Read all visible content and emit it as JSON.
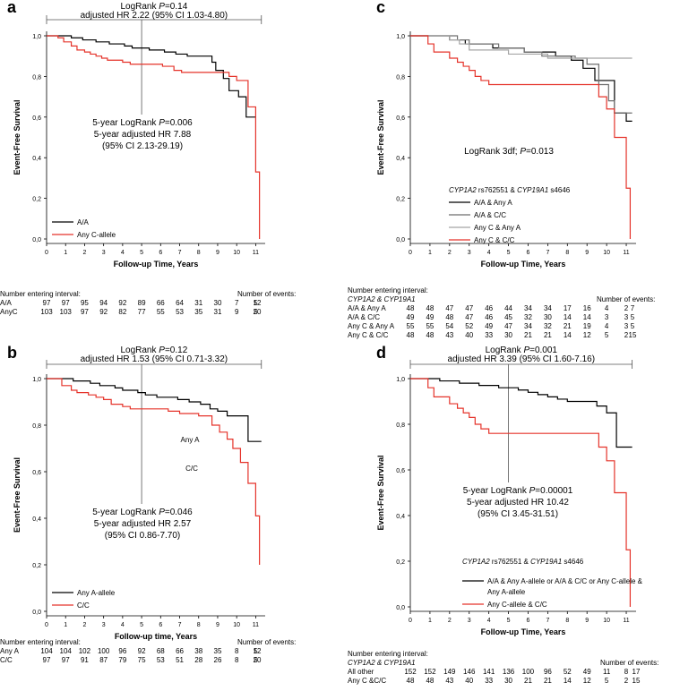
{
  "chart_data": [
    {
      "panel": "a",
      "type": "line",
      "ylabel": "Event-Free Survival",
      "xlabel": "Follow-up Time, Years",
      "xlim": [
        0,
        11.5
      ],
      "ylim": [
        0,
        1.0
      ],
      "xticks": [
        "0",
        "1",
        "2",
        "3",
        "4",
        "5",
        "6",
        "7",
        "8",
        "9",
        "10",
        "11"
      ],
      "yticks": [
        "0,0",
        "0,2",
        "0,4",
        "0,6",
        "0,8",
        "1,0"
      ],
      "overall_annotation": {
        "line1": "LogRank P=0.14",
        "line2": "adjusted HR 2.22 (95% CI 1.03-4.80)"
      },
      "five_year_annotation": [
        "5-year LogRank P=0.006",
        "5-year adjusted HR 7.88",
        "(95% CI 2.13-29.19)"
      ],
      "series": [
        {
          "name": "A/A",
          "color": "#000000",
          "x": [
            0,
            1.1,
            1.3,
            1.6,
            1.9,
            2.3,
            2.6,
            2.9,
            3.3,
            3.7,
            4.1,
            4.5,
            5.1,
            5.4,
            6.2,
            6.8,
            7.4,
            8.1,
            8.7,
            8.9,
            9.3,
            9.6,
            10.1,
            10.5,
            11.0
          ],
          "y": [
            1.0,
            1.0,
            0.99,
            0.99,
            0.98,
            0.98,
            0.97,
            0.97,
            0.96,
            0.96,
            0.95,
            0.94,
            0.94,
            0.93,
            0.92,
            0.91,
            0.9,
            0.9,
            0.87,
            0.83,
            0.79,
            0.73,
            0.7,
            0.6,
            0.6
          ]
        },
        {
          "name": "Any C-allele",
          "color": "#e5332a",
          "x": [
            0,
            0.6,
            0.9,
            1.3,
            1.6,
            2.0,
            2.3,
            2.6,
            2.9,
            3.2,
            3.6,
            4.0,
            4.4,
            4.8,
            5.2,
            6.1,
            6.7,
            7.1,
            7.4,
            8.3,
            8.8,
            9.2,
            9.6,
            10.0,
            10.6,
            11.0,
            11.2
          ],
          "y": [
            1.0,
            0.99,
            0.97,
            0.95,
            0.93,
            0.92,
            0.91,
            0.9,
            0.89,
            0.88,
            0.88,
            0.87,
            0.86,
            0.86,
            0.86,
            0.85,
            0.83,
            0.82,
            0.82,
            0.82,
            0.82,
            0.82,
            0.8,
            0.78,
            0.65,
            0.33,
            0.0
          ]
        }
      ],
      "risk_table": {
        "header": "Number entering interval:",
        "events_header": "Number of events:",
        "rows": [
          {
            "label": "A/A",
            "values": [
              "97",
              "97",
              "95",
              "94",
              "92",
              "89",
              "66",
              "64",
              "31",
              "30",
              "7",
              "5"
            ],
            "events": "12"
          },
          {
            "label": "AnyC",
            "values": [
              "103",
              "103",
              "97",
              "92",
              "82",
              "77",
              "55",
              "53",
              "35",
              "31",
              "9",
              "5"
            ],
            "events": "20"
          }
        ]
      }
    },
    {
      "panel": "b",
      "type": "line",
      "ylabel": "Event-Free Survival",
      "xlabel": "Follow-up time, Years",
      "xlim": [
        0,
        11.5
      ],
      "ylim": [
        0,
        1.0
      ],
      "xticks": [
        "0",
        "1",
        "2",
        "3",
        "4",
        "5",
        "6",
        "7",
        "8",
        "9",
        "10",
        "11"
      ],
      "yticks": [
        "0,0",
        "0,2",
        "0,4",
        "0,6",
        "0,8",
        "1,0"
      ],
      "overall_annotation": {
        "line1": "LogRank P=0.12",
        "line2": "adjusted HR 1.53 (95% CI 0.71-3.32)"
      },
      "five_year_annotation": [
        "5-year LogRank P=0.046",
        "5-year adjusted HR 2.57",
        "(95% CI 0.86-7.70)"
      ],
      "curve_labels": [
        "Any A",
        "C/C"
      ],
      "series": [
        {
          "name": "Any A-allele",
          "color": "#000000",
          "x": [
            0,
            1.0,
            1.4,
            1.8,
            2.3,
            2.8,
            3.2,
            3.6,
            4.0,
            4.4,
            4.8,
            5.2,
            5.8,
            6.3,
            6.9,
            7.5,
            8.1,
            8.6,
            9.0,
            9.5,
            10.0,
            10.6,
            11.0,
            11.3
          ],
          "y": [
            1.0,
            1.0,
            0.99,
            0.99,
            0.98,
            0.97,
            0.97,
            0.96,
            0.95,
            0.95,
            0.94,
            0.93,
            0.92,
            0.92,
            0.91,
            0.9,
            0.89,
            0.87,
            0.86,
            0.84,
            0.84,
            0.73,
            0.73,
            0.73
          ]
        },
        {
          "name": "C/C",
          "color": "#e5332a",
          "x": [
            0,
            0.8,
            1.3,
            1.6,
            2.2,
            2.6,
            3.0,
            3.4,
            4.0,
            4.4,
            5.5,
            6.4,
            7.0,
            7.5,
            8.0,
            8.7,
            9.1,
            9.5,
            9.8,
            10.2,
            10.6,
            11.0,
            11.2
          ],
          "y": [
            1.0,
            0.97,
            0.95,
            0.94,
            0.93,
            0.92,
            0.91,
            0.89,
            0.88,
            0.87,
            0.87,
            0.86,
            0.85,
            0.85,
            0.84,
            0.8,
            0.77,
            0.74,
            0.7,
            0.64,
            0.55,
            0.41,
            0.2
          ]
        }
      ],
      "risk_table": {
        "header": "Number entering interval:",
        "events_header": "Number of events:",
        "rows": [
          {
            "label": "Any A",
            "values": [
              "104",
              "104",
              "102",
              "100",
              "96",
              "92",
              "68",
              "66",
              "38",
              "35",
              "8",
              "5"
            ],
            "events": "12"
          },
          {
            "label": "C/C",
            "values": [
              "97",
              "97",
              "91",
              "87",
              "79",
              "75",
              "53",
              "51",
              "28",
              "26",
              "8",
              "5"
            ],
            "events": "20"
          }
        ]
      }
    },
    {
      "panel": "c",
      "type": "line",
      "ylabel": "Event-Free Survival",
      "xlabel": "Follow-up Time, Years",
      "xlim": [
        0,
        11.5
      ],
      "ylim": [
        0,
        1.0
      ],
      "xticks": [
        "0",
        "1",
        "2",
        "3",
        "4",
        "5",
        "6",
        "7",
        "8",
        "9",
        "10",
        "11"
      ],
      "yticks": [
        "0,0",
        "0,2",
        "0,4",
        "0,6",
        "0,8",
        "1,0"
      ],
      "center_annotation": "LogRank 3df; P=0.013",
      "legend_title": "CYP1A2 rs762551 & CYP19A1 s4646",
      "series": [
        {
          "name": "A/A & Any A",
          "color": "#000000",
          "x": [
            0,
            1.2,
            2.0,
            2.8,
            3.5,
            4.2,
            5.0,
            5.8,
            6.5,
            7.4,
            8.2,
            8.8,
            9.4,
            9.9,
            10.4,
            11.0,
            11.3
          ],
          "y": [
            1.0,
            1.0,
            0.98,
            0.96,
            0.96,
            0.94,
            0.94,
            0.92,
            0.92,
            0.9,
            0.88,
            0.84,
            0.78,
            0.78,
            0.62,
            0.58,
            0.58
          ]
        },
        {
          "name": "A/A & C/C",
          "color": "#6e6e6e",
          "x": [
            0,
            1.5,
            2.4,
            3.0,
            3.8,
            4.5,
            5.0,
            5.8,
            6.7,
            7.5,
            8.4,
            9.0,
            9.6,
            10.1,
            10.4,
            11.3
          ],
          "y": [
            1.0,
            1.0,
            0.98,
            0.96,
            0.96,
            0.94,
            0.94,
            0.92,
            0.9,
            0.9,
            0.89,
            0.86,
            0.76,
            0.68,
            0.62,
            0.62
          ]
        },
        {
          "name": "Any C & Any A",
          "color": "#a5a5a5",
          "x": [
            0,
            1.0,
            2.0,
            2.5,
            3.0,
            4.0,
            5.0,
            6.0,
            7.0,
            7.5,
            8.0,
            9.0,
            10.0,
            11.3
          ],
          "y": [
            1.0,
            1.0,
            0.98,
            0.96,
            0.93,
            0.93,
            0.91,
            0.91,
            0.89,
            0.89,
            0.89,
            0.89,
            0.89,
            0.89
          ]
        },
        {
          "name": "Any C & C/C",
          "color": "#e5332a",
          "x": [
            0,
            0.9,
            1.2,
            1.6,
            2.0,
            2.4,
            2.7,
            3.0,
            3.3,
            3.6,
            4.0,
            4.6,
            5.5,
            6.5,
            7.5,
            8.5,
            9.2,
            9.6,
            10.0,
            10.4,
            11.0,
            11.2
          ],
          "y": [
            1.0,
            0.96,
            0.92,
            0.92,
            0.89,
            0.87,
            0.85,
            0.83,
            0.8,
            0.78,
            0.76,
            0.76,
            0.76,
            0.76,
            0.76,
            0.76,
            0.76,
            0.7,
            0.64,
            0.5,
            0.25,
            0.0
          ]
        }
      ],
      "risk_table": {
        "header": "Number entering interval:",
        "subheader": "CYP1A2 & CYP19A1",
        "events_header": "Number of events:",
        "rows": [
          {
            "label": "A/A & Any A",
            "values": [
              "48",
              "48",
              "47",
              "47",
              "46",
              "44",
              "34",
              "34",
              "17",
              "16",
              "4",
              "2"
            ],
            "events": "7"
          },
          {
            "label": "A/A & C/C",
            "values": [
              "49",
              "49",
              "48",
              "47",
              "46",
              "45",
              "32",
              "30",
              "14",
              "14",
              "3",
              "3"
            ],
            "events": "5"
          },
          {
            "label": "Any C & Any A",
            "values": [
              "55",
              "55",
              "54",
              "52",
              "49",
              "47",
              "34",
              "32",
              "21",
              "19",
              "4",
              "3"
            ],
            "events": "5"
          },
          {
            "label": "Any C & C/C",
            "values": [
              "48",
              "48",
              "43",
              "40",
              "33",
              "30",
              "21",
              "21",
              "14",
              "12",
              "5",
              "2"
            ],
            "events": "15"
          }
        ]
      }
    },
    {
      "panel": "d",
      "type": "line",
      "ylabel": "Event-Free Survival",
      "xlabel": "Follow-up Time, Years",
      "xlim": [
        0,
        11.5
      ],
      "ylim": [
        0,
        1.0
      ],
      "xticks": [
        "0",
        "1",
        "2",
        "3",
        "4",
        "5",
        "6",
        "7",
        "8",
        "9",
        "10",
        "11"
      ],
      "yticks": [
        "0,0",
        "0,2",
        "0,4",
        "0,6",
        "0,8",
        "1,0"
      ],
      "overall_annotation": {
        "line1": "LogRank P=0.001",
        "line2": "adjusted HR 3.39 (95% CI 1.60-7.16)"
      },
      "five_year_annotation": [
        "5-year LogRank P=0.00001",
        "5-year adjusted HR 10.42",
        "(95% CI 3.45-31.51)"
      ],
      "legend_title": "CYP1A2 rs762551 & CYP19A1 s4646",
      "series": [
        {
          "name": "A/A & Any A-allele or A/A & C/C or Any C-allele & Any A-allele",
          "color": "#000000",
          "x": [
            0,
            1.0,
            1.5,
            2.0,
            2.5,
            3.0,
            3.5,
            4.0,
            4.5,
            5.0,
            5.5,
            6.0,
            6.5,
            7.0,
            7.5,
            8.0,
            8.5,
            9.0,
            9.5,
            10.0,
            10.5,
            11.0,
            11.3
          ],
          "y": [
            1.0,
            1.0,
            0.99,
            0.99,
            0.98,
            0.98,
            0.97,
            0.97,
            0.96,
            0.96,
            0.95,
            0.94,
            0.93,
            0.92,
            0.91,
            0.9,
            0.9,
            0.9,
            0.88,
            0.85,
            0.7,
            0.7,
            0.7
          ]
        },
        {
          "name": "Any C-allele & C/C",
          "color": "#e5332a",
          "x": [
            0,
            0.9,
            1.2,
            1.6,
            2.0,
            2.4,
            2.7,
            3.0,
            3.3,
            3.6,
            4.0,
            4.6,
            5.5,
            6.5,
            7.5,
            8.5,
            9.2,
            9.6,
            10.0,
            10.4,
            11.0,
            11.2
          ],
          "y": [
            1.0,
            0.96,
            0.92,
            0.92,
            0.89,
            0.87,
            0.85,
            0.83,
            0.8,
            0.78,
            0.76,
            0.76,
            0.76,
            0.76,
            0.76,
            0.76,
            0.76,
            0.7,
            0.64,
            0.5,
            0.25,
            0.0
          ]
        }
      ],
      "risk_table": {
        "header": "Number entering interval:",
        "subheader": "CYP1A2 & CYP19A1",
        "events_header": "Number of events:",
        "rows": [
          {
            "label": "All other",
            "values": [
              "152",
              "152",
              "149",
              "146",
              "141",
              "136",
              "100",
              "96",
              "52",
              "49",
              "11",
              "8"
            ],
            "events": "17"
          },
          {
            "label": "Any C &C/C",
            "values": [
              "48",
              "48",
              "43",
              "40",
              "33",
              "30",
              "21",
              "21",
              "14",
              "12",
              "5",
              "2"
            ],
            "events": "15"
          }
        ]
      }
    }
  ],
  "panel_labels": [
    "a",
    "b",
    "c",
    "d"
  ]
}
